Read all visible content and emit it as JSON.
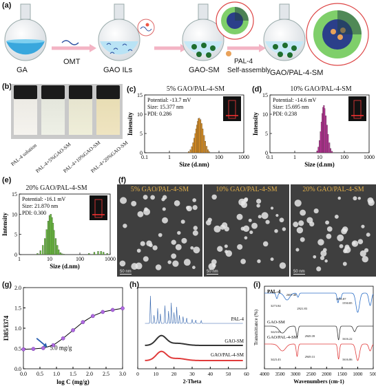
{
  "panel_labels": {
    "a": "(a)",
    "b": "(b)",
    "c": "(c)",
    "d": "(d)",
    "e": "(e)",
    "f": "(f)",
    "g": "(g)",
    "h": "(h)",
    "i": "(i)"
  },
  "scheme": {
    "flask1": "GA",
    "arrow1": "OMT",
    "flask2": "GAO ILs",
    "flask3": "GAO-SM",
    "pal_label": "PAL-4",
    "self_assembly": "Self-assembly",
    "flask4": "GAO/PAL-4-SM"
  },
  "vials": [
    "PAL-4 solution",
    "PAL-4+5%GAO-SM",
    "PAL-4+10%GAO-SM",
    "PAL-4+20%GAO-SM"
  ],
  "dls": [
    {
      "title": "5% GAO/PAL-4-SM",
      "potential": "Potential: -13.7 mV",
      "size": "Size: 15.377 nm",
      "pdi": "PDI: 0.286",
      "color": "#e8951e",
      "xlabel": "Size (d.nm)",
      "ylabel": "Intensity",
      "yticks": [
        "0",
        "5",
        "10",
        "15"
      ],
      "xticks": [
        "0.1",
        "1",
        "10",
        "100",
        "1000"
      ]
    },
    {
      "title": "10% GAO/PAL-4-SM",
      "potential": "Potential: -14.6 mV",
      "size": "Size: 15.695 nm",
      "pdi": "PDI: 0.238",
      "color": "#c0309a",
      "xlabel": "Size (d.nm)",
      "ylabel": "Intensity",
      "yticks": [
        "0",
        "5",
        "10",
        "15"
      ],
      "xticks": [
        "0.1",
        "1",
        "10",
        "100",
        "1000"
      ]
    },
    {
      "title": "20% GAO/PAL-4-SM",
      "potential": "Potential: -16.1 mV",
      "size": "Size: 21.870 nm",
      "pdi": "PDI: 0.300",
      "color": "#6cc040",
      "xlabel": "Size (d.nm)",
      "ylabel": "Intensity",
      "yticks": [
        "0",
        "5",
        "10",
        "15"
      ],
      "xticks": [
        "1",
        "10",
        "100",
        "1000"
      ]
    }
  ],
  "tem": [
    {
      "title": "5% GAO/PAL-4-SM",
      "scale": "50 nm"
    },
    {
      "title": "10% GAO/PAL-4-SM",
      "scale": "50 nm"
    },
    {
      "title": "20% GAO/PAL-4-SM",
      "scale": "50 nm"
    }
  ],
  "chart_data": [
    {
      "type": "bar",
      "panel": "c",
      "x_log_center": [
        6,
        7,
        8,
        9,
        10,
        11,
        12,
        13,
        14,
        15,
        16,
        18,
        20,
        22,
        25,
        28,
        32,
        36,
        40
      ],
      "values": [
        0.3,
        0.8,
        1.6,
        2.6,
        3.8,
        5.0,
        6.2,
        7.2,
        8.2,
        8.9,
        9.0,
        8.6,
        7.6,
        6.2,
        4.5,
        3.0,
        1.7,
        0.8,
        0.3
      ],
      "xlabel": "Size (d.nm)",
      "ylabel": "Intensity",
      "ylim": [
        0,
        15
      ],
      "xlim": [
        0.1,
        1000
      ]
    },
    {
      "type": "bar",
      "panel": "d",
      "x_log_center": [
        8,
        9,
        10,
        11,
        12,
        13,
        14,
        15,
        16,
        18,
        20,
        22,
        25,
        28,
        32
      ],
      "values": [
        0.5,
        1.5,
        3.2,
        5.5,
        8.0,
        10.2,
        11.8,
        12.3,
        11.5,
        9.6,
        7.2,
        4.8,
        2.6,
        1.1,
        0.4
      ],
      "xlabel": "Size (d.nm)",
      "ylabel": "Intensity",
      "ylim": [
        0,
        15
      ],
      "xlim": [
        0.1,
        1000
      ]
    },
    {
      "type": "bar",
      "panel": "e",
      "x_log_center": [
        4,
        5,
        6,
        7,
        8,
        9,
        10,
        11,
        12,
        13,
        14,
        16,
        18,
        20,
        23,
        26,
        30,
        200,
        300,
        400,
        500,
        600,
        800
      ],
      "values": [
        0.3,
        1.0,
        2.3,
        4.0,
        6.2,
        8.3,
        9.7,
        10.0,
        9.2,
        7.8,
        6.0,
        4.0,
        2.3,
        1.2,
        0.5,
        0.2,
        0.1,
        0.3,
        0.6,
        0.8,
        0.8,
        0.6,
        0.3
      ],
      "xlabel": "Size (d.nm)",
      "ylabel": "Intensity",
      "ylim": [
        0,
        15
      ],
      "xlim": [
        1,
        1000
      ]
    },
    {
      "type": "line",
      "panel": "g",
      "x": [
        0,
        0.3,
        0.6,
        0.9,
        1.2,
        1.5,
        1.8,
        2.1,
        2.4,
        2.7,
        3.0
      ],
      "y": [
        0.48,
        0.49,
        0.51,
        0.58,
        0.75,
        0.95,
        1.15,
        1.3,
        1.4,
        1.45,
        1.49
      ],
      "xlabel": "log C (mg/g)",
      "ylabel": "I385/I374",
      "xlim": [
        0,
        3.0
      ],
      "ylim": [
        0,
        2.0
      ],
      "annotation": "5.0 mg/g",
      "xticks": [
        "0.0",
        "0.5",
        "1.0",
        "1.5",
        "2.0",
        "2.5",
        "3.0"
      ],
      "yticks": [
        "0.0",
        "0.5",
        "1.0",
        "1.5",
        "2.0"
      ]
    },
    {
      "type": "line",
      "panel": "h",
      "series": [
        {
          "name": "PAL-4",
          "color": "#2c5faa"
        },
        {
          "name": "GAO-SM",
          "color": "#333333"
        },
        {
          "name": "GAO/PAL-4-SM",
          "color": "#e03a3a"
        }
      ],
      "xlabel": "2-Theta",
      "xlim": [
        0,
        60
      ],
      "xticks": [
        "0",
        "10",
        "20",
        "30",
        "40",
        "50",
        "60"
      ]
    },
    {
      "type": "line",
      "panel": "i",
      "series": [
        {
          "name": "PAL-4",
          "color": "#2c6fc8"
        },
        {
          "name": "GAO-SM",
          "color": "#333333"
        },
        {
          "name": "GAO/PAL-4-SM",
          "color": "#e03a3a"
        }
      ],
      "xlabel": "Wavenumbers (cm-1)",
      "ylabel": "Transmittance (%)",
      "xticks": [
        "4000",
        "3500",
        "3000",
        "2500",
        "2000",
        "1500",
        "1000",
        "500"
      ],
      "annotations": [
        "2607.48",
        "3273.84",
        "2921.83",
        "1635.87",
        "1550.85",
        "3423.65",
        "2949.39",
        "1616.22",
        "3423.43",
        "2949.31",
        "1616.06"
      ]
    }
  ],
  "cmc_label": "5.0 mg/g"
}
